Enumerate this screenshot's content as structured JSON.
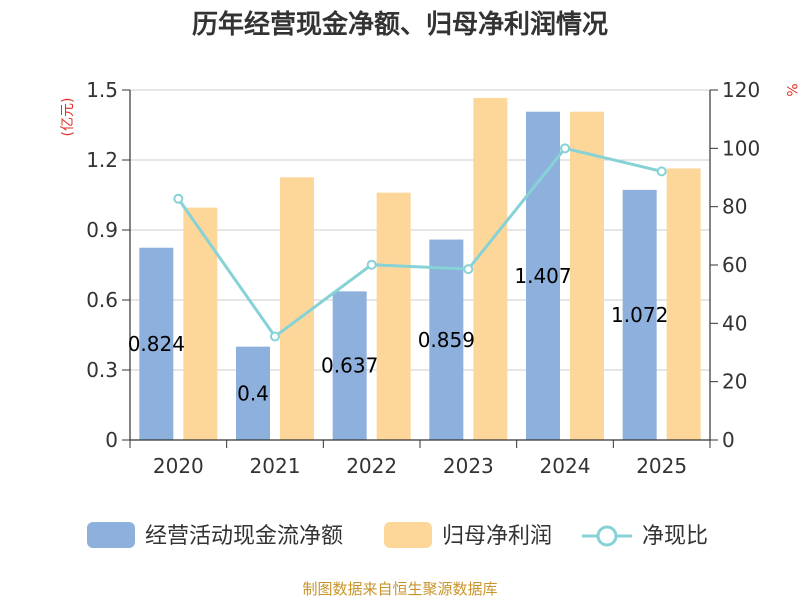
{
  "title": "历年经营现金净额、归母净利润情况",
  "source": "制图数据来自恒生聚源数据库",
  "colors": {
    "cash": "#8eb0dc",
    "profit": "#fdd79a",
    "ratio": "#86d2d6"
  },
  "chart_data": {
    "type": "bar",
    "categories": [
      "2020",
      "2021",
      "2022",
      "2023",
      "2024",
      "2025"
    ],
    "series": [
      {
        "name": "经营活动现金流净额",
        "type": "bar",
        "axis": "left",
        "values": [
          0.824,
          0.4,
          0.637,
          0.859,
          1.407,
          1.072
        ]
      },
      {
        "name": "归母净利润",
        "type": "bar",
        "axis": "left",
        "values": [
          0.996,
          1.126,
          1.06,
          1.466,
          1.407,
          1.164
        ]
      },
      {
        "name": "净现比",
        "type": "line",
        "axis": "right",
        "values": [
          82.7,
          35.5,
          60.1,
          58.6,
          100.0,
          92.1
        ]
      }
    ],
    "data_labels": [
      "0.824",
      "0.4",
      "0.637",
      "0.859",
      "1.407",
      "1.072"
    ],
    "left_axis": {
      "unit": "(亿元)",
      "min": 0,
      "max": 1.5,
      "ticks": [
        "0",
        "0.3",
        "0.6",
        "0.9",
        "1.2",
        "1.5"
      ]
    },
    "right_axis": {
      "unit": "%",
      "min": 0,
      "max": 120,
      "ticks": [
        "0",
        "20",
        "40",
        "60",
        "80",
        "100",
        "120"
      ]
    },
    "legend": [
      "经营活动现金流净额",
      "归母净利润",
      "净现比"
    ]
  }
}
